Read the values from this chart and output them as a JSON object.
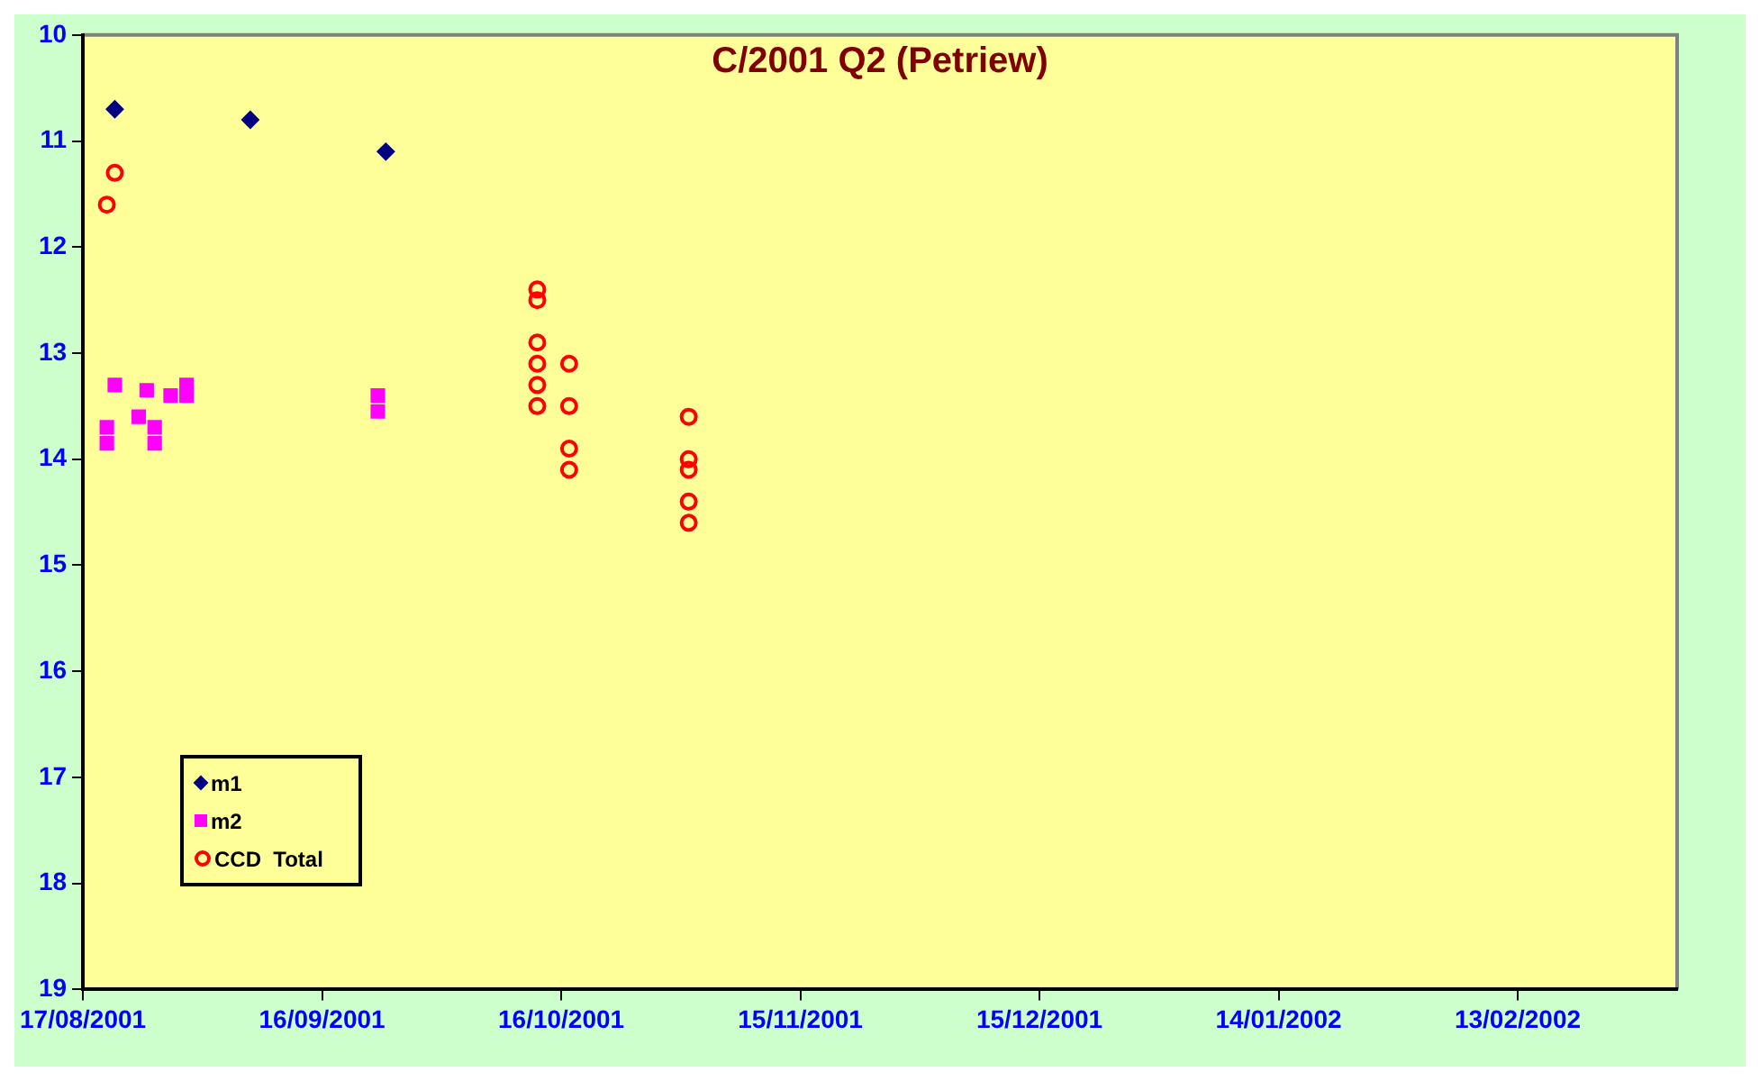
{
  "chart_data": {
    "type": "scatter",
    "title": "C/2001 Q2 (Petriew)",
    "xlim": [
      "2001-08-17",
      "2002-03-05"
    ],
    "xticks": [
      {
        "value": "2001-08-17",
        "label": "17/08/2001"
      },
      {
        "value": "2001-09-16",
        "label": "16/09/2001"
      },
      {
        "value": "2001-10-16",
        "label": "16/10/2001"
      },
      {
        "value": "2001-11-15",
        "label": "15/11/2001"
      },
      {
        "value": "2001-12-15",
        "label": "15/12/2001"
      },
      {
        "value": "2002-01-14",
        "label": "14/01/2002"
      },
      {
        "value": "2002-02-13",
        "label": "13/02/2002"
      }
    ],
    "ylim": [
      19,
      10
    ],
    "yticks": [
      10,
      11,
      12,
      13,
      14,
      15,
      16,
      17,
      18,
      19
    ],
    "grid": false,
    "legend": "bottom left",
    "series": [
      {
        "name": "m1",
        "color": "#000080",
        "marker": "diamond",
        "x": [
          "2001-08-21",
          "2001-09-07",
          "2001-09-24"
        ],
        "values": [
          10.7,
          10.8,
          11.1
        ]
      },
      {
        "name": "m2",
        "color": "#ff00ff",
        "marker": "square",
        "x": [
          "2001-08-21",
          "2001-08-25",
          "2001-08-28",
          "2001-08-30",
          "2001-08-30",
          "2001-08-20",
          "2001-08-20",
          "2001-08-24",
          "2001-08-26",
          "2001-08-26",
          "2001-09-23",
          "2001-09-23"
        ],
        "values": [
          13.3,
          13.35,
          13.4,
          13.3,
          13.4,
          13.7,
          13.85,
          13.6,
          13.7,
          13.85,
          13.4,
          13.55
        ]
      },
      {
        "name": "CCD  Total",
        "color": "#ff0000",
        "marker": "circle",
        "x": [
          "2001-08-21",
          "2001-08-20",
          "2001-10-13",
          "2001-10-13",
          "2001-10-13",
          "2001-10-13",
          "2001-10-13",
          "2001-10-13",
          "2001-10-17",
          "2001-10-17",
          "2001-10-17",
          "2001-10-17",
          "2001-11-01",
          "2001-11-01",
          "2001-11-01",
          "2001-11-01",
          "2001-11-01"
        ],
        "values": [
          11.3,
          11.6,
          12.4,
          12.5,
          12.9,
          13.1,
          13.3,
          13.5,
          13.1,
          13.5,
          13.9,
          14.1,
          13.6,
          14.0,
          14.1,
          14.4,
          14.6
        ]
      }
    ]
  }
}
